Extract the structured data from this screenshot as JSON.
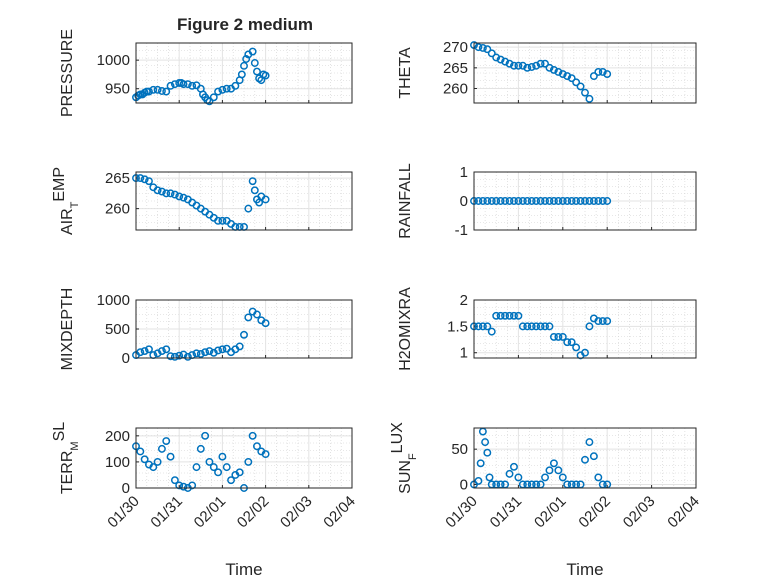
{
  "figure_title": "Figure 2 medium",
  "marker_color": "#0072bd",
  "x_tick_labels": [
    "01/30",
    "01/31",
    "02/01",
    "02/02",
    "02/03",
    "02/04"
  ],
  "x_label": "Time",
  "panels": [
    {
      "ylabel": "PRESSURE",
      "ylabel_sub": "",
      "ylabel_tail": "",
      "yticks": [
        "950",
        "1000"
      ]
    },
    {
      "ylabel": "THETA",
      "ylabel_sub": "",
      "ylabel_tail": "",
      "yticks": [
        "260",
        "265",
        "270"
      ]
    },
    {
      "ylabel": "AIR",
      "ylabel_sub": "T",
      "ylabel_tail": "EMP",
      "yticks": [
        "260",
        "265"
      ]
    },
    {
      "ylabel": "RAINFALL",
      "ylabel_sub": "",
      "ylabel_tail": "",
      "yticks": [
        "-1",
        "0",
        "1"
      ]
    },
    {
      "ylabel": "MIXDEPTH",
      "ylabel_sub": "",
      "ylabel_tail": "",
      "yticks": [
        "0",
        "500",
        "1000"
      ]
    },
    {
      "ylabel": "H2OMIXRA",
      "ylabel_sub": "",
      "ylabel_tail": "",
      "yticks": [
        "1",
        "1.5",
        "2"
      ]
    },
    {
      "ylabel": "TERR",
      "ylabel_sub": "M",
      "ylabel_tail": "SL",
      "yticks": [
        "0",
        "100",
        "200"
      ]
    },
    {
      "ylabel": "SUN",
      "ylabel_sub": "F",
      "ylabel_tail": "LUX",
      "yticks": [
        "0",
        "50"
      ]
    }
  ],
  "chart_data": [
    {
      "type": "scatter",
      "title": "Figure 2 medium",
      "ylabel": "PRESSURE",
      "xlabel": "",
      "xlim": [
        0,
        5
      ],
      "ylim": [
        925,
        1030
      ],
      "x": [
        0.0,
        0.05,
        0.1,
        0.15,
        0.2,
        0.25,
        0.3,
        0.4,
        0.5,
        0.6,
        0.7,
        0.8,
        0.9,
        1.0,
        1.05,
        1.1,
        1.2,
        1.3,
        1.4,
        1.5,
        1.55,
        1.6,
        1.65,
        1.7,
        1.8,
        1.9,
        2.0,
        2.1,
        2.2,
        2.3,
        2.4,
        2.45,
        2.5,
        2.55,
        2.6,
        2.7,
        2.75,
        2.8,
        2.85,
        2.9,
        2.95,
        3.0
      ],
      "y": [
        935,
        938,
        940,
        940,
        943,
        945,
        945,
        948,
        948,
        946,
        945,
        955,
        958,
        960,
        960,
        958,
        958,
        955,
        956,
        950,
        940,
        935,
        930,
        928,
        935,
        945,
        948,
        950,
        950,
        955,
        965,
        975,
        990,
        1002,
        1010,
        1015,
        995,
        980,
        968,
        965,
        975,
        973
      ]
    },
    {
      "type": "scatter",
      "ylabel": "THETA",
      "xlabel": "",
      "xlim": [
        0,
        5
      ],
      "ylim": [
        256.5,
        271
      ],
      "x": [
        0.0,
        0.1,
        0.2,
        0.3,
        0.4,
        0.5,
        0.6,
        0.7,
        0.8,
        0.9,
        1.0,
        1.1,
        1.2,
        1.3,
        1.4,
        1.5,
        1.6,
        1.7,
        1.8,
        1.9,
        2.0,
        2.1,
        2.2,
        2.3,
        2.4,
        2.5,
        2.6,
        2.7,
        2.8,
        2.9,
        3.0
      ],
      "y": [
        270.5,
        270,
        269.8,
        269.5,
        268.5,
        267.5,
        267,
        266.5,
        266,
        265.5,
        265.5,
        265.5,
        265,
        265.2,
        265.5,
        266,
        266,
        265,
        264.5,
        264,
        263.5,
        263,
        262.5,
        261.5,
        260.5,
        259,
        257.5,
        263,
        264,
        264,
        263.5
      ]
    },
    {
      "type": "scatter",
      "ylabel": "AIR_TEMP",
      "xlabel": "",
      "xlim": [
        0,
        5
      ],
      "ylim": [
        256.5,
        266
      ],
      "x": [
        0.0,
        0.1,
        0.2,
        0.3,
        0.4,
        0.5,
        0.6,
        0.7,
        0.8,
        0.9,
        1.0,
        1.1,
        1.2,
        1.3,
        1.4,
        1.5,
        1.6,
        1.7,
        1.8,
        1.9,
        2.0,
        2.1,
        2.2,
        2.3,
        2.4,
        2.5,
        2.6,
        2.7,
        2.75,
        2.8,
        2.85,
        2.9,
        3.0
      ],
      "y": [
        265,
        265,
        264.8,
        264.5,
        263.5,
        263,
        262.8,
        262.5,
        262.5,
        262.3,
        262,
        261.8,
        261.5,
        261,
        260.5,
        260,
        259.5,
        259,
        258.5,
        258,
        258,
        258,
        257.5,
        257,
        257,
        257,
        260,
        264.5,
        263,
        261.5,
        261,
        262,
        261.5
      ]
    },
    {
      "type": "scatter",
      "ylabel": "RAINFALL",
      "xlabel": "",
      "xlim": [
        0,
        5
      ],
      "ylim": [
        -1,
        1
      ],
      "x": [
        0.0,
        0.1,
        0.2,
        0.3,
        0.4,
        0.5,
        0.6,
        0.7,
        0.8,
        0.9,
        1.0,
        1.1,
        1.2,
        1.3,
        1.4,
        1.5,
        1.6,
        1.7,
        1.8,
        1.9,
        2.0,
        2.1,
        2.2,
        2.3,
        2.4,
        2.5,
        2.6,
        2.7,
        2.8,
        2.9,
        3.0
      ],
      "y": [
        0,
        0,
        0,
        0,
        0,
        0,
        0,
        0,
        0,
        0,
        0,
        0,
        0,
        0,
        0,
        0,
        0,
        0,
        0,
        0,
        0,
        0,
        0,
        0,
        0,
        0,
        0,
        0,
        0,
        0,
        0
      ]
    },
    {
      "type": "scatter",
      "ylabel": "MIXDEPTH",
      "xlabel": "",
      "xlim": [
        0,
        5
      ],
      "ylim": [
        0,
        1000
      ],
      "x": [
        0.0,
        0.1,
        0.2,
        0.3,
        0.4,
        0.5,
        0.6,
        0.7,
        0.8,
        0.9,
        1.0,
        1.1,
        1.2,
        1.3,
        1.4,
        1.5,
        1.6,
        1.7,
        1.8,
        1.9,
        2.0,
        2.1,
        2.2,
        2.3,
        2.4,
        2.5,
        2.6,
        2.7,
        2.8,
        2.9,
        3.0
      ],
      "y": [
        50,
        100,
        120,
        150,
        50,
        80,
        120,
        150,
        30,
        20,
        40,
        60,
        20,
        50,
        80,
        70,
        100,
        120,
        90,
        130,
        150,
        160,
        100,
        150,
        200,
        400,
        700,
        800,
        750,
        650,
        600
      ]
    },
    {
      "type": "scatter",
      "ylabel": "H2OMIXRA",
      "xlabel": "",
      "xlim": [
        0,
        5
      ],
      "ylim": [
        0.9,
        2
      ],
      "x": [
        0.0,
        0.1,
        0.2,
        0.3,
        0.4,
        0.5,
        0.6,
        0.7,
        0.8,
        0.9,
        1.0,
        1.1,
        1.2,
        1.3,
        1.4,
        1.5,
        1.6,
        1.7,
        1.8,
        1.9,
        2.0,
        2.1,
        2.2,
        2.3,
        2.4,
        2.5,
        2.6,
        2.7,
        2.8,
        2.9,
        3.0
      ],
      "y": [
        1.5,
        1.5,
        1.5,
        1.5,
        1.4,
        1.7,
        1.7,
        1.7,
        1.7,
        1.7,
        1.7,
        1.5,
        1.5,
        1.5,
        1.5,
        1.5,
        1.5,
        1.5,
        1.3,
        1.3,
        1.3,
        1.2,
        1.2,
        1.1,
        0.95,
        1.0,
        1.5,
        1.65,
        1.6,
        1.6,
        1.6
      ]
    },
    {
      "type": "scatter",
      "ylabel": "TERR_MSL",
      "xlabel": "Time",
      "xlim": [
        0,
        5
      ],
      "ylim": [
        0,
        230
      ],
      "x": [
        0.0,
        0.1,
        0.2,
        0.3,
        0.4,
        0.5,
        0.6,
        0.7,
        0.8,
        0.9,
        1.0,
        1.1,
        1.2,
        1.3,
        1.4,
        1.5,
        1.6,
        1.7,
        1.8,
        1.9,
        2.0,
        2.1,
        2.2,
        2.3,
        2.4,
        2.5,
        2.6,
        2.7,
        2.8,
        2.9,
        3.0
      ],
      "y": [
        160,
        140,
        110,
        90,
        80,
        100,
        150,
        180,
        120,
        30,
        10,
        5,
        0,
        10,
        80,
        150,
        200,
        100,
        80,
        60,
        120,
        80,
        30,
        50,
        60,
        0,
        100,
        200,
        160,
        140,
        130
      ]
    },
    {
      "type": "scatter",
      "ylabel": "SUN_FLUX",
      "xlabel": "Time",
      "xlim": [
        0,
        5
      ],
      "ylim": [
        -5,
        80
      ],
      "x": [
        0.0,
        0.1,
        0.15,
        0.2,
        0.25,
        0.3,
        0.35,
        0.4,
        0.5,
        0.6,
        0.7,
        0.8,
        0.9,
        1.0,
        1.1,
        1.2,
        1.3,
        1.4,
        1.5,
        1.6,
        1.7,
        1.8,
        1.9,
        2.0,
        2.1,
        2.2,
        2.3,
        2.4,
        2.5,
        2.6,
        2.7,
        2.8,
        2.9,
        3.0
      ],
      "y": [
        0,
        5,
        30,
        75,
        60,
        45,
        10,
        0,
        0,
        0,
        0,
        15,
        25,
        10,
        0,
        0,
        0,
        0,
        0,
        10,
        20,
        30,
        20,
        10,
        0,
        0,
        0,
        0,
        35,
        60,
        40,
        10,
        0,
        0
      ]
    }
  ]
}
